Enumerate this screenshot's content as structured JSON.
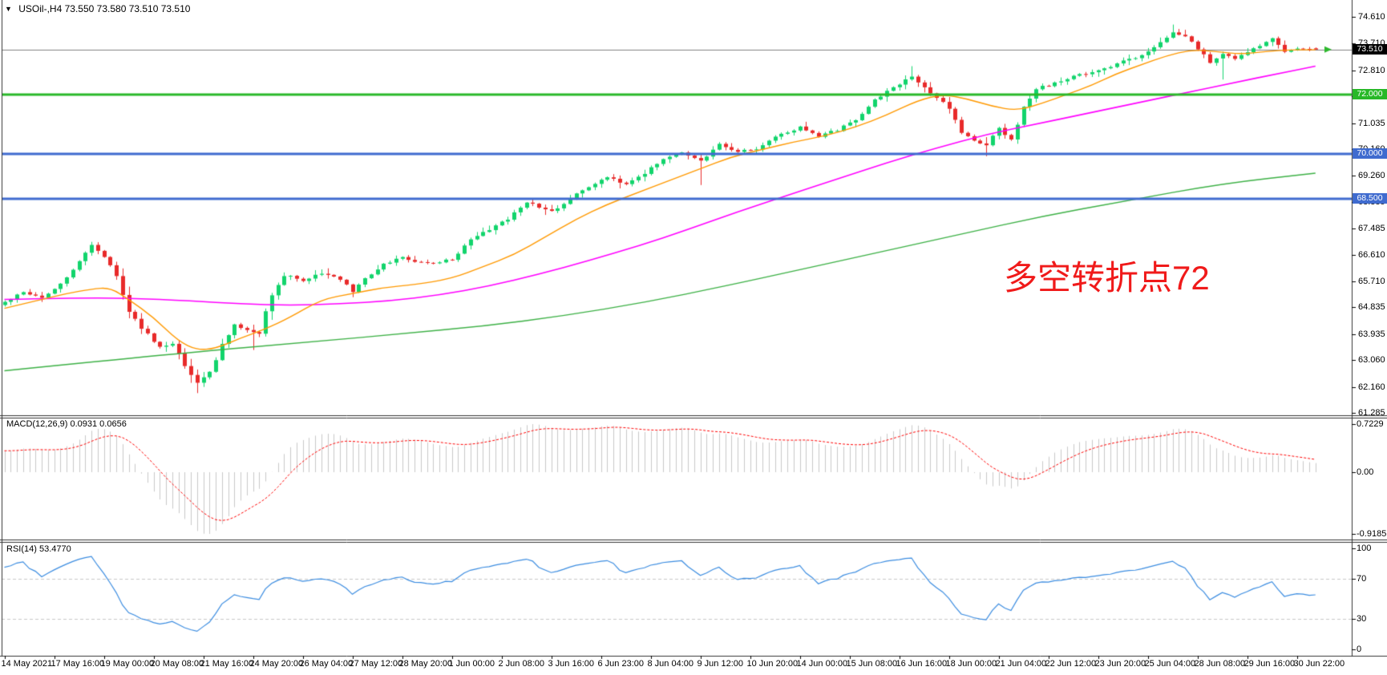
{
  "window": {
    "title_symbol": "USOil-,H4",
    "title_ohlc": "73.550 73.580 73.510 73.510"
  },
  "icons": {
    "dropdown": "▼"
  },
  "annotation": {
    "text": "多空转折点72",
    "color": "#f01a1a"
  },
  "chart_data": [
    {
      "type": "candlestick",
      "symbol": "USOil-",
      "timeframe": "H4",
      "last_ohlc": {
        "open": 73.55,
        "high": 73.58,
        "low": 73.51,
        "close": 73.51
      },
      "bars_total": 212,
      "colors": {
        "up": "#12d46c",
        "down": "#e82a2a",
        "axis_text": "#000000",
        "border": "#333333"
      },
      "y_axis": {
        "max": 74.61,
        "min": 61.285,
        "ticks": [
          "74.610",
          "73.710",
          "72.810",
          "71.935",
          "71.035",
          "70.160",
          "69.260",
          "68.385",
          "67.485",
          "66.610",
          "65.710",
          "64.835",
          "63.935",
          "63.060",
          "62.160",
          "61.285"
        ]
      },
      "x_axis_labels": [
        "14 May 2021",
        "17 May 16:00",
        "19 May 00:00",
        "20 May 08:00",
        "21 May 16:00",
        "24 May 20:00",
        "26 May 04:00",
        "27 May 12:00",
        "28 May 20:00",
        "1 Jun 00:00",
        "2 Jun 08:00",
        "3 Jun 16:00",
        "6 Jun 23:00",
        "8 Jun 04:00",
        "9 Jun 12:00",
        "10 Jun 20:00",
        "14 Jun 00:00",
        "15 Jun 08:00",
        "16 Jun 16:00",
        "18 Jun 00:00",
        "21 Jun 04:00",
        "22 Jun 12:00",
        "23 Jun 20:00",
        "25 Jun 04:00",
        "28 Jun 08:00",
        "29 Jun 16:00",
        "30 Jun 22:00"
      ],
      "horizontal_lines": [
        {
          "name": "current-price-line",
          "price": 73.51,
          "color": "#808080",
          "width": 1,
          "badge_bg": "#000000",
          "badge_text": "73.510"
        },
        {
          "name": "level-72",
          "price": 72.0,
          "color": "#28b828",
          "width": 3,
          "badge_bg": "#28b828",
          "badge_text": "72.000"
        },
        {
          "name": "level-70",
          "price": 70.0,
          "color": "#3f6bcf",
          "width": 3,
          "badge_bg": "#3f6bcf",
          "badge_text": "70.000"
        },
        {
          "name": "level-68-5",
          "price": 68.5,
          "color": "#3f6bcf",
          "width": 3,
          "badge_bg": "#3f6bcf",
          "badge_text": "68.500"
        }
      ],
      "price_arrow": {
        "price": 73.51,
        "color": "#2db82d"
      },
      "close_keypoints": [
        [
          -40,
          63.1,
          0.22
        ],
        [
          -34,
          63.9,
          0.2
        ],
        [
          -28,
          63.4,
          0.2
        ],
        [
          -22,
          64.2,
          0.18
        ],
        [
          -16,
          64.6,
          0.18
        ],
        [
          -10,
          64.5,
          0.16
        ],
        [
          -5,
          64.9,
          0.15
        ],
        [
          -1,
          64.9,
          0.14
        ],
        [
          0,
          65.0,
          0.16
        ],
        [
          3,
          65.35,
          0.15
        ],
        [
          6,
          65.15,
          0.15
        ],
        [
          9,
          65.6,
          0.17
        ],
        [
          12,
          66.4,
          0.2
        ],
        [
          14,
          66.95,
          0.2
        ],
        [
          16,
          66.5,
          0.22
        ],
        [
          18,
          65.9,
          0.3
        ],
        [
          20,
          64.6,
          0.35
        ],
        [
          23,
          63.9,
          0.3
        ],
        [
          25,
          63.45,
          0.26
        ],
        [
          27,
          63.6,
          0.22
        ],
        [
          29,
          62.85,
          0.3
        ],
        [
          31,
          62.3,
          0.3
        ],
        [
          33,
          62.6,
          0.25
        ],
        [
          35,
          63.6,
          0.28
        ],
        [
          37,
          64.25,
          0.22
        ],
        [
          39,
          64.05,
          0.2
        ],
        [
          41,
          64.0,
          0.24
        ],
        [
          43,
          65.3,
          0.22
        ],
        [
          45,
          65.9,
          0.18
        ],
        [
          48,
          65.75,
          0.15
        ],
        [
          51,
          66.0,
          0.15
        ],
        [
          54,
          65.8,
          0.15
        ],
        [
          56,
          65.35,
          0.18
        ],
        [
          58,
          65.8,
          0.15
        ],
        [
          61,
          66.3,
          0.15
        ],
        [
          64,
          66.5,
          0.13
        ],
        [
          68,
          66.3,
          0.12
        ],
        [
          72,
          66.45,
          0.13
        ],
        [
          75,
          67.1,
          0.16
        ],
        [
          78,
          67.45,
          0.15
        ],
        [
          81,
          67.8,
          0.15
        ],
        [
          84,
          68.4,
          0.16
        ],
        [
          86,
          68.2,
          0.15
        ],
        [
          88,
          68.05,
          0.15
        ],
        [
          91,
          68.5,
          0.14
        ],
        [
          94,
          68.9,
          0.14
        ],
        [
          97,
          69.2,
          0.13
        ],
        [
          100,
          69.0,
          0.14
        ],
        [
          103,
          69.35,
          0.14
        ],
        [
          106,
          69.85,
          0.15
        ],
        [
          109,
          70.05,
          0.15
        ],
        [
          112,
          69.75,
          0.18
        ],
        [
          115,
          70.3,
          0.15
        ],
        [
          118,
          70.1,
          0.14
        ],
        [
          121,
          70.15,
          0.14
        ],
        [
          124,
          70.55,
          0.14
        ],
        [
          128,
          70.9,
          0.13
        ],
        [
          131,
          70.6,
          0.14
        ],
        [
          134,
          70.8,
          0.14
        ],
        [
          137,
          71.15,
          0.15
        ],
        [
          140,
          71.8,
          0.16
        ],
        [
          143,
          72.25,
          0.16
        ],
        [
          146,
          72.6,
          0.16
        ],
        [
          148,
          72.2,
          0.18
        ],
        [
          150,
          71.9,
          0.18
        ],
        [
          152,
          71.5,
          0.2
        ],
        [
          154,
          70.7,
          0.22
        ],
        [
          156,
          70.45,
          0.2
        ],
        [
          158,
          70.3,
          0.18
        ],
        [
          160,
          70.9,
          0.18
        ],
        [
          162,
          70.45,
          0.2
        ],
        [
          164,
          71.55,
          0.22
        ],
        [
          166,
          72.2,
          0.16
        ],
        [
          168,
          72.3,
          0.14
        ],
        [
          171,
          72.55,
          0.14
        ],
        [
          174,
          72.7,
          0.14
        ],
        [
          177,
          72.85,
          0.15
        ],
        [
          180,
          73.1,
          0.15
        ],
        [
          183,
          73.3,
          0.15
        ],
        [
          186,
          73.75,
          0.16
        ],
        [
          188,
          74.1,
          0.15
        ],
        [
          190,
          73.95,
          0.15
        ],
        [
          192,
          73.55,
          0.17
        ],
        [
          194,
          73.1,
          0.17
        ],
        [
          196,
          73.35,
          0.15
        ],
        [
          198,
          73.2,
          0.15
        ],
        [
          200,
          73.45,
          0.14
        ],
        [
          202,
          73.6,
          0.13
        ],
        [
          204,
          73.9,
          0.14
        ],
        [
          206,
          73.45,
          0.15
        ],
        [
          208,
          73.55,
          0.12
        ],
        [
          210,
          73.5,
          0.1
        ],
        [
          211,
          73.51,
          0.08
        ]
      ],
      "wick_events": [
        {
          "bar": 31,
          "low": 61.95
        },
        {
          "bar": 40,
          "low": 63.4
        },
        {
          "bar": 112,
          "low": 68.95
        },
        {
          "bar": 146,
          "high": 72.95
        },
        {
          "bar": 158,
          "low": 69.92
        },
        {
          "bar": 188,
          "high": 74.35
        },
        {
          "bar": 196,
          "low": 72.5
        }
      ],
      "moving_averages": [
        {
          "name": "ma-fast",
          "color": "#ff9900",
          "points": [
            [
              0,
              64.8
            ],
            [
              6,
              65.1
            ],
            [
              10,
              65.3
            ],
            [
              14,
              65.45
            ],
            [
              17,
              65.5
            ],
            [
              20,
              65.1
            ],
            [
              24,
              64.5
            ],
            [
              28,
              63.7
            ],
            [
              31,
              63.4
            ],
            [
              34,
              63.45
            ],
            [
              38,
              63.8
            ],
            [
              42,
              64.1
            ],
            [
              46,
              64.5
            ],
            [
              51,
              65.1
            ],
            [
              56,
              65.3
            ],
            [
              61,
              65.5
            ],
            [
              66,
              65.6
            ],
            [
              72,
              65.8
            ],
            [
              77,
              66.2
            ],
            [
              82,
              66.6
            ],
            [
              87,
              67.2
            ],
            [
              92,
              67.8
            ],
            [
              97,
              68.3
            ],
            [
              102,
              68.7
            ],
            [
              107,
              69.1
            ],
            [
              112,
              69.5
            ],
            [
              117,
              69.9
            ],
            [
              122,
              70.15
            ],
            [
              127,
              70.4
            ],
            [
              132,
              70.6
            ],
            [
              137,
              70.9
            ],
            [
              142,
              71.3
            ],
            [
              147,
              71.8
            ],
            [
              151,
              72.0
            ],
            [
              155,
              71.85
            ],
            [
              159,
              71.6
            ],
            [
              163,
              71.45
            ],
            [
              167,
              71.7
            ],
            [
              171,
              72.0
            ],
            [
              175,
              72.3
            ],
            [
              179,
              72.7
            ],
            [
              183,
              73.0
            ],
            [
              187,
              73.3
            ],
            [
              191,
              73.5
            ],
            [
              195,
              73.45
            ],
            [
              199,
              73.35
            ],
            [
              203,
              73.45
            ],
            [
              207,
              73.5
            ],
            [
              211,
              73.5
            ]
          ]
        },
        {
          "name": "ma-medium",
          "color": "#ff00ff",
          "points": [
            [
              0,
              65.1
            ],
            [
              10,
              65.15
            ],
            [
              20,
              65.15
            ],
            [
              30,
              65.05
            ],
            [
              38,
              64.95
            ],
            [
              46,
              64.9
            ],
            [
              54,
              64.95
            ],
            [
              62,
              65.05
            ],
            [
              70,
              65.25
            ],
            [
              78,
              65.55
            ],
            [
              86,
              65.95
            ],
            [
              94,
              66.4
            ],
            [
              102,
              66.9
            ],
            [
              110,
              67.45
            ],
            [
              118,
              68.05
            ],
            [
              126,
              68.6
            ],
            [
              134,
              69.15
            ],
            [
              142,
              69.7
            ],
            [
              150,
              70.2
            ],
            [
              158,
              70.65
            ],
            [
              166,
              71.0
            ],
            [
              174,
              71.35
            ],
            [
              182,
              71.7
            ],
            [
              190,
              72.05
            ],
            [
              198,
              72.4
            ],
            [
              205,
              72.7
            ],
            [
              211,
              72.95
            ]
          ]
        },
        {
          "name": "ma-slow",
          "color": "#3cb045",
          "points": [
            [
              0,
              62.7
            ],
            [
              26,
              63.25
            ],
            [
              51,
              63.7
            ],
            [
              64,
              63.95
            ],
            [
              77,
              64.2
            ],
            [
              90,
              64.55
            ],
            [
              103,
              65.0
            ],
            [
              116,
              65.55
            ],
            [
              128,
              66.1
            ],
            [
              141,
              66.7
            ],
            [
              154,
              67.3
            ],
            [
              167,
              67.9
            ],
            [
              180,
              68.4
            ],
            [
              196,
              69.0
            ],
            [
              211,
              69.35
            ]
          ]
        }
      ]
    },
    {
      "type": "bar",
      "name": "MACD",
      "label": "MACD(12,26,9) 0.0931 0.0656",
      "params": [
        12,
        26,
        9
      ],
      "current_values": {
        "macd": 0.0931,
        "signal": 0.0656
      },
      "y_axis_labels": [
        "0.7229",
        "0.00",
        "-0.9185"
      ],
      "y_axis": {
        "max": 0.7229,
        "zero": 0.0,
        "min": -0.9185
      },
      "histogram_color": "#c9c9c9",
      "signal_color": "#ff0000",
      "derived_from": "close_keypoints"
    },
    {
      "type": "line",
      "name": "RSI",
      "label": "RSI(14) 53.4770",
      "period": 14,
      "current_value": 53.477,
      "levels": [
        70,
        30
      ],
      "y_axis_labels": [
        "100",
        "70",
        "30",
        "0"
      ],
      "y_axis": {
        "max": 100,
        "min": 0
      },
      "color": "#3b8ce0",
      "level_color": "#c8c8c8",
      "derived_from": "close_keypoints"
    }
  ]
}
